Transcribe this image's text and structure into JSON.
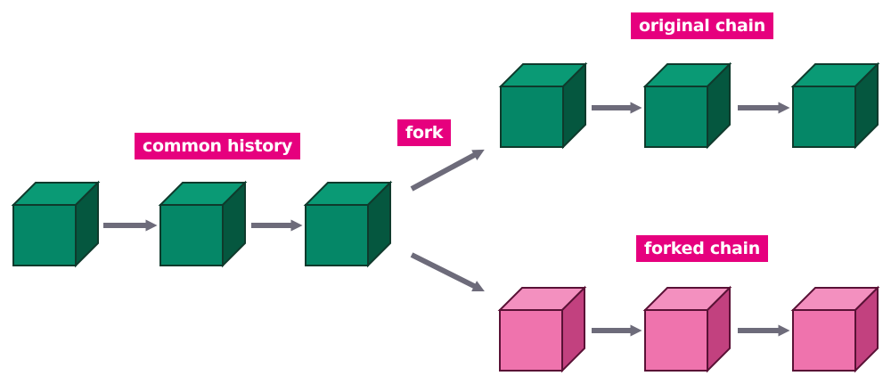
{
  "labels": {
    "common_history": "common history",
    "fork": "fork",
    "original_chain": "original chain",
    "forked_chain": "forked chain"
  },
  "colors": {
    "label_bg": "#e6007e",
    "label_text": "#ffffff",
    "green_front": "#058767",
    "green_top": "#0a9a75",
    "green_side": "#05573f",
    "pink_front": "#ef73ad",
    "pink_top": "#f390bf",
    "pink_side": "#c2417f",
    "edge": "#0f3a2c",
    "arrow": "#6d6b7a"
  },
  "diagram": {
    "common_history_blocks": 3,
    "original_chain_blocks": 3,
    "forked_chain_blocks": 3
  }
}
